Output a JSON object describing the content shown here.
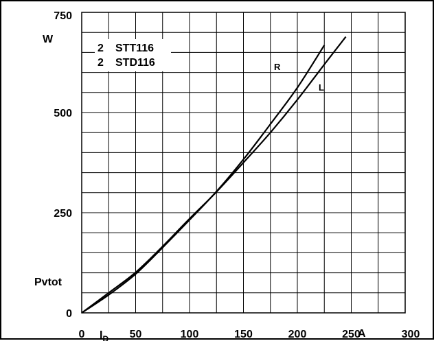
{
  "chart_data": {
    "type": "line",
    "title": "",
    "xlabel": "I",
    "xlabel_subscript": "D",
    "xunit": "A",
    "ylabel": "Pvtot",
    "yunit": "W",
    "xlim": [
      0,
      300
    ],
    "ylim": [
      0,
      750
    ],
    "x_ticks": [
      0,
      50,
      100,
      150,
      200,
      250,
      300
    ],
    "y_ticks_labeled": [
      0,
      250,
      500,
      750
    ],
    "x_tick_labels": [
      "0",
      "50",
      "100",
      "150",
      "200",
      "250",
      "300"
    ],
    "y_tick_labels": [
      "0",
      "250",
      "500",
      "750"
    ],
    "grid": true,
    "legend_lines": [
      {
        "number": "2",
        "text": "STT116"
      },
      {
        "number": "2",
        "text": "STD116"
      }
    ],
    "series": [
      {
        "name": "R",
        "x": [
          0,
          25,
          50,
          75,
          100,
          125,
          150,
          175,
          200,
          225
        ],
        "y": [
          0,
          45,
          97,
          163,
          232,
          303,
          383,
          471,
          562,
          668
        ]
      },
      {
        "name": "L",
        "x": [
          0,
          25,
          50,
          75,
          100,
          125,
          150,
          175,
          200,
          225,
          245
        ],
        "y": [
          0,
          50,
          101,
          166,
          235,
          302,
          375,
          450,
          532,
          620,
          689
        ]
      }
    ],
    "curve_label_colors": {
      "line": "#000000",
      "grid": "#000000",
      "background": "#ffffff"
    }
  }
}
